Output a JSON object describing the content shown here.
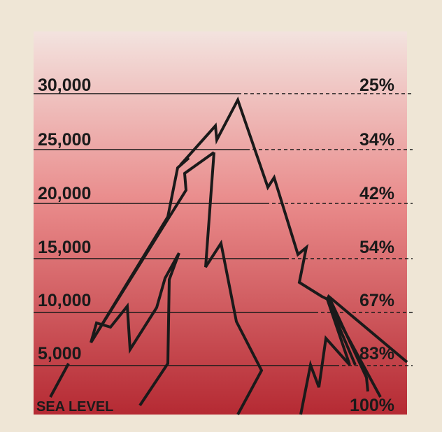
{
  "colors": {
    "paper": "#efe6d6",
    "gradient_top": "#f3e3df",
    "gradient_mid": "#e98a8a",
    "gradient_bottom": "#b52a33",
    "ink": "#1a1a1a"
  },
  "levels": [
    {
      "altitude": "30,000",
      "oxygen": "25%"
    },
    {
      "altitude": "25,000",
      "oxygen": "34%"
    },
    {
      "altitude": "20,000",
      "oxygen": "42%"
    },
    {
      "altitude": "15,000",
      "oxygen": "54%"
    },
    {
      "altitude": "10,000",
      "oxygen": "67%"
    },
    {
      "altitude": "5,000",
      "oxygen": "83%"
    },
    {
      "altitude": "SEA LEVEL",
      "oxygen": "100%"
    }
  ]
}
